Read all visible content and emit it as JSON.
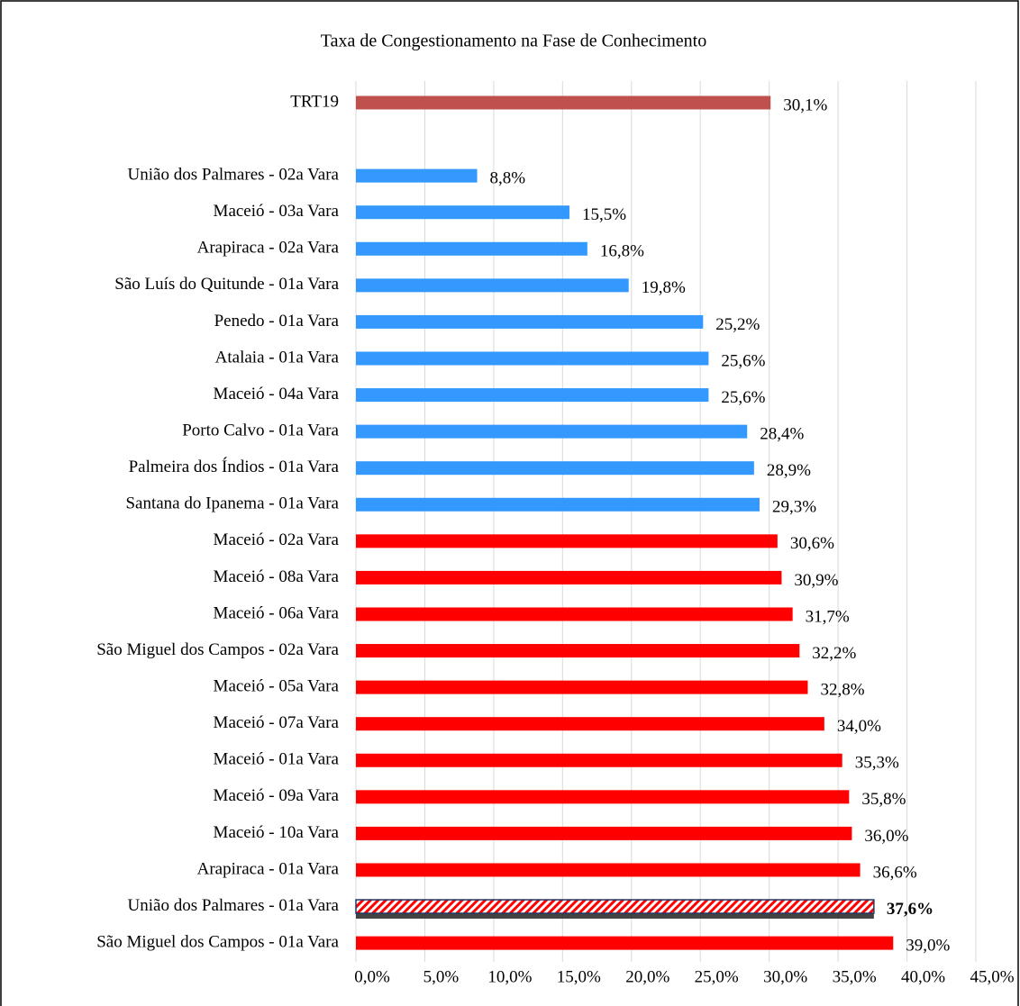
{
  "chart_data": {
    "type": "hbar",
    "title": "Taxa de Congestionamento na Fase de Conhecimento",
    "categories": [
      "TRT19",
      null,
      "União dos Palmares - 02a Vara",
      "Maceió - 03a Vara",
      "Arapiraca - 02a Vara",
      "São Luís do Quitunde - 01a Vara",
      "Penedo - 01a Vara",
      "Atalaia - 01a Vara",
      "Maceió - 04a Vara",
      "Porto Calvo - 01a Vara",
      "Palmeira dos Índios - 01a Vara",
      "Santana do Ipanema - 01a Vara",
      "Maceió - 02a Vara",
      "Maceió - 08a Vara",
      "Maceió - 06a Vara",
      "São Miguel dos Campos - 02a Vara",
      "Maceió - 05a Vara",
      "Maceió - 07a Vara",
      "Maceió - 01a Vara",
      "Maceió - 09a Vara",
      "Maceió - 10a Vara",
      "Arapiraca - 01a Vara",
      "União dos Palmares - 01a Vara",
      "São Miguel dos Campos - 01a Vara"
    ],
    "values": [
      30.1,
      null,
      8.8,
      15.5,
      16.8,
      19.8,
      25.2,
      25.6,
      25.6,
      28.4,
      28.9,
      29.3,
      30.6,
      30.9,
      31.7,
      32.2,
      32.8,
      34.0,
      35.3,
      35.8,
      36.0,
      36.6,
      37.6,
      39.0
    ],
    "value_labels": [
      "30,1%",
      null,
      "8,8%",
      "15,5%",
      "16,8%",
      "19,8%",
      "25,2%",
      "25,6%",
      "25,6%",
      "28,4%",
      "28,9%",
      "29,3%",
      "30,6%",
      "30,9%",
      "31,7%",
      "32,2%",
      "32,8%",
      "34,0%",
      "35,3%",
      "35,8%",
      "36,0%",
      "36,6%",
      "37,6%",
      "39,0%"
    ],
    "colors": [
      "#c0504d",
      null,
      "#3399ff",
      "#3399ff",
      "#3399ff",
      "#3399ff",
      "#3399ff",
      "#3399ff",
      "#3399ff",
      "#3399ff",
      "#3399ff",
      "#3399ff",
      "#ff0000",
      "#ff0000",
      "#ff0000",
      "#ff0000",
      "#ff0000",
      "#ff0000",
      "#ff0000",
      "#ff0000",
      "#ff0000",
      "#ff0000",
      "#ff0000",
      "#ff0000"
    ],
    "highlight": 22,
    "xlim": [
      0,
      45
    ],
    "xticks": [
      {
        "value": 0,
        "label": "0,0%"
      },
      {
        "value": 5,
        "label": "5,0%"
      },
      {
        "value": 10,
        "label": "10,0%"
      },
      {
        "value": 15,
        "label": "15,0%"
      },
      {
        "value": 20,
        "label": "20,0%"
      },
      {
        "value": 25,
        "label": "25,0%"
      },
      {
        "value": 30,
        "label": "30,0%"
      },
      {
        "value": 35,
        "label": "35,0%"
      },
      {
        "value": 40,
        "label": "40,0%"
      },
      {
        "value": 45,
        "label": "45,0%"
      }
    ],
    "grid": true
  }
}
